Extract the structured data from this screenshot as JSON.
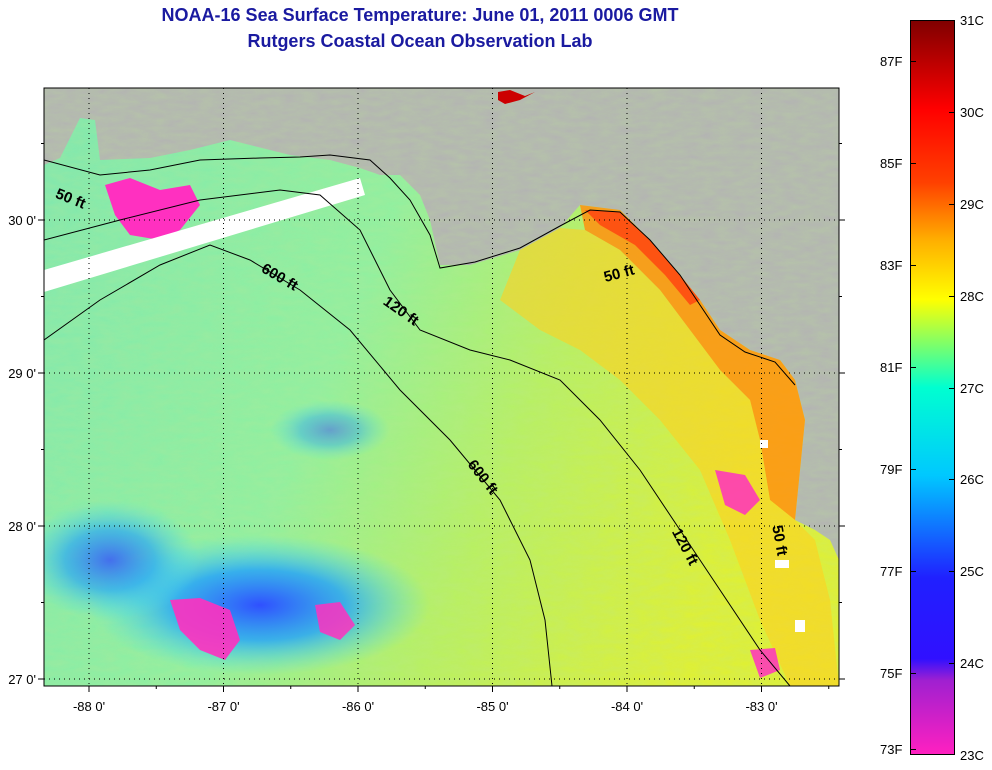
{
  "title_line1": "NOAA-16 Sea Surface Temperature:  June 01, 2011 0006 GMT",
  "title_line2": "Rutgers Coastal Ocean Observation Lab",
  "lat_labels": [
    {
      "lat": 30,
      "label": "30 0'"
    },
    {
      "lat": 29,
      "label": "29 0'"
    },
    {
      "lat": 28,
      "label": "28 0'"
    },
    {
      "lat": 27,
      "label": "27 0'"
    }
  ],
  "lon_labels": [
    {
      "lon": -88,
      "label": "-88 0'"
    },
    {
      "lon": -87,
      "label": "-87 0'"
    },
    {
      "lon": -86,
      "label": "-86 0'"
    },
    {
      "lon": -85,
      "label": "-85 0'"
    },
    {
      "lon": -84,
      "label": "-84 0'"
    },
    {
      "lon": -83,
      "label": "-83 0'"
    }
  ],
  "contour_labels": [
    {
      "text": "50 ft",
      "lon": -88.15,
      "lat": 30.11,
      "rotate": 22
    },
    {
      "text": "600 ft",
      "lon": -86.6,
      "lat": 29.6,
      "rotate": 30
    },
    {
      "text": "120 ft",
      "lon": -85.7,
      "lat": 29.38,
      "rotate": 35
    },
    {
      "text": "50 ft",
      "lon": -84.05,
      "lat": 29.62,
      "rotate": -15
    },
    {
      "text": "600 ft",
      "lon": -85.1,
      "lat": 28.3,
      "rotate": 52
    },
    {
      "text": "120 ft",
      "lon": -83.6,
      "lat": 27.85,
      "rotate": 62
    },
    {
      "text": "50 ft",
      "lon": -82.9,
      "lat": 27.9,
      "rotate": 80
    }
  ],
  "colorbar": {
    "fahrenheit": [
      {
        "label": "87F",
        "value": 87
      },
      {
        "label": "85F",
        "value": 85
      },
      {
        "label": "83F",
        "value": 83
      },
      {
        "label": "81F",
        "value": 81
      },
      {
        "label": "79F",
        "value": 79
      },
      {
        "label": "77F",
        "value": 77
      },
      {
        "label": "75F",
        "value": 75
      },
      {
        "label": "73F",
        "value": 73
      }
    ],
    "celsius": [
      {
        "label": "31C",
        "value": 31
      },
      {
        "label": "30C",
        "value": 30
      },
      {
        "label": "29C",
        "value": 29
      },
      {
        "label": "28C",
        "value": 28
      },
      {
        "label": "27C",
        "value": 27
      },
      {
        "label": "26C",
        "value": 26
      },
      {
        "label": "25C",
        "value": 25
      },
      {
        "label": "24C",
        "value": 24
      },
      {
        "label": "23C",
        "value": 23
      }
    ],
    "colors": [
      "#ff20c0",
      "#a020d0",
      "#2020ff",
      "#00c8ff",
      "#00ffd0",
      "#ffff00",
      "#ffb000",
      "#ff4000",
      "#ff0000",
      "#800000"
    ]
  },
  "colors": {
    "land": "#b3b3b3",
    "cloud": "#ffffff",
    "title": "#1a1aa0"
  }
}
